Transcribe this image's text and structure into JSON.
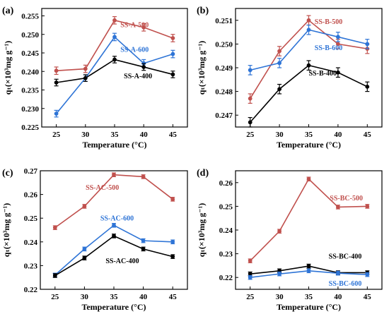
{
  "colors": {
    "red": "#C0504D",
    "blue": "#2E74D6",
    "black": "#000000"
  },
  "chart_data": [
    {
      "panel": "(a)",
      "type": "line",
      "xlabel": "Temperature (°C)",
      "ylabel": "qₜ(×10³mg g⁻¹)",
      "x": [
        25,
        30,
        35,
        40,
        45
      ],
      "xlim": [
        22.5,
        47.5
      ],
      "ylim": [
        0.225,
        0.257
      ],
      "yticks": [
        0.225,
        0.23,
        0.235,
        0.24,
        0.245,
        0.25,
        0.255
      ],
      "ytick_labels": [
        "0.225",
        "0.230",
        "0.235",
        "0.240",
        "0.245",
        "0.250",
        "0.255"
      ],
      "series": [
        {
          "name": "SS-A-500",
          "color": "red",
          "values": [
            0.2402,
            0.2407,
            0.2538,
            0.2519,
            0.249
          ],
          "errors": [
            0.001,
            0.001,
            0.001,
            0.001,
            0.001
          ],
          "label_at": [
            36.0,
            0.2526
          ]
        },
        {
          "name": "SS-A-600",
          "color": "blue",
          "values": [
            0.2286,
            0.2382,
            0.2493,
            0.2422,
            0.2447
          ],
          "errors": [
            0.0009,
            0.0009,
            0.001,
            0.001,
            0.001
          ],
          "label_at": [
            36.0,
            0.246
          ]
        },
        {
          "name": "SS-A-400",
          "color": "black",
          "values": [
            0.237,
            0.2382,
            0.2432,
            0.2412,
            0.2392
          ],
          "errors": [
            0.0009,
            0.0009,
            0.0009,
            0.0009,
            0.0009
          ],
          "label_at": [
            36.6,
            0.2388
          ]
        }
      ]
    },
    {
      "panel": "(b)",
      "type": "line",
      "xlabel": "Temperature (°C)",
      "ylabel": "qₜ(×10³mg g⁻¹)",
      "x": [
        25,
        30,
        35,
        40,
        45
      ],
      "xlim": [
        22.5,
        47.5
      ],
      "ylim": [
        0.2465,
        0.2515
      ],
      "yticks": [
        0.247,
        0.248,
        0.249,
        0.25,
        0.251
      ],
      "ytick_labels": [
        "0.247",
        "0.248",
        "0.249",
        "0.250",
        "0.251"
      ],
      "series": [
        {
          "name": "SS-B-500",
          "color": "red",
          "values": [
            0.2477,
            0.2497,
            0.251,
            0.25,
            0.2498
          ],
          "errors": [
            0.0002,
            0.0002,
            0.0002,
            0.0002,
            0.0002
          ],
          "label_at": [
            36.0,
            0.25095
          ]
        },
        {
          "name": "SS-B-600",
          "color": "blue",
          "values": [
            0.2489,
            0.2492,
            0.2506,
            0.2503,
            0.25
          ],
          "errors": [
            0.0002,
            0.0002,
            0.0002,
            0.0002,
            0.0002
          ],
          "label_at": [
            36.0,
            0.24985
          ]
        },
        {
          "name": "SS-B-400",
          "color": "black",
          "values": [
            0.2467,
            0.2481,
            0.2491,
            0.2488,
            0.2482
          ],
          "errors": [
            0.0002,
            0.0002,
            0.0002,
            0.0002,
            0.0002
          ],
          "label_at": [
            35.0,
            0.24878
          ]
        }
      ]
    },
    {
      "panel": "(c)",
      "type": "line",
      "xlabel": "Temperature (°C)",
      "ylabel": "qₜ(×10³mg g⁻¹)",
      "x": [
        25,
        30,
        35,
        40,
        45
      ],
      "xlim": [
        22.5,
        47.5
      ],
      "ylim": [
        0.22,
        0.27
      ],
      "yticks": [
        0.22,
        0.23,
        0.24,
        0.25,
        0.26,
        0.27
      ],
      "ytick_labels": [
        "0.22",
        "0.23",
        "0.24",
        "0.25",
        "0.26",
        "0.27"
      ],
      "series": [
        {
          "name": "SS-AC-500",
          "color": "red",
          "values": [
            0.246,
            0.255,
            0.2683,
            0.2675,
            0.258
          ],
          "errors": [
            0.0008,
            0.0008,
            0.0008,
            0.0008,
            0.0008
          ],
          "label_at": [
            30.2,
            0.263
          ]
        },
        {
          "name": "SS-AC-600",
          "color": "blue",
          "values": [
            0.226,
            0.237,
            0.247,
            0.2405,
            0.24
          ],
          "errors": [
            0.0008,
            0.0008,
            0.0008,
            0.0008,
            0.0008
          ],
          "label_at": [
            32.7,
            0.25
          ]
        },
        {
          "name": "SS-AC-400",
          "color": "black",
          "values": [
            0.2258,
            0.2332,
            0.2425,
            0.237,
            0.2338
          ],
          "errors": [
            0.0008,
            0.0008,
            0.0008,
            0.0008,
            0.0008
          ],
          "label_at": [
            33.6,
            0.232
          ]
        }
      ]
    },
    {
      "panel": "(d)",
      "type": "line",
      "xlabel": "Temperature (°C)",
      "ylabel": "qₜ(×10³mg g⁻¹)",
      "x": [
        25,
        30,
        35,
        40,
        45
      ],
      "xlim": [
        22.5,
        47.5
      ],
      "ylim": [
        0.215,
        0.265
      ],
      "yticks": [
        0.22,
        0.23,
        0.24,
        0.25,
        0.26
      ],
      "ytick_labels": [
        "0.22",
        "0.23",
        "0.24",
        "0.25",
        "0.26"
      ],
      "series": [
        {
          "name": "SS-BC-500",
          "color": "red",
          "values": [
            0.227,
            0.2395,
            0.2615,
            0.2497,
            0.25
          ],
          "errors": [
            0.0008,
            0.0008,
            0.0008,
            0.0008,
            0.0008
          ],
          "label_at": [
            38.6,
            0.2535
          ]
        },
        {
          "name": "SS-BC-400",
          "color": "black",
          "values": [
            0.2215,
            0.2228,
            0.2248,
            0.222,
            0.222
          ],
          "errors": [
            0.0008,
            0.0008,
            0.0008,
            0.0008,
            0.0008
          ],
          "label_at": [
            38.4,
            0.229
          ]
        },
        {
          "name": "SS-BC-600",
          "color": "blue",
          "values": [
            0.22,
            0.2215,
            0.2228,
            0.2218,
            0.2212
          ],
          "errors": [
            0.0008,
            0.0008,
            0.0008,
            0.0008,
            0.0008
          ],
          "label_at": [
            38.4,
            0.2176
          ]
        }
      ]
    }
  ]
}
